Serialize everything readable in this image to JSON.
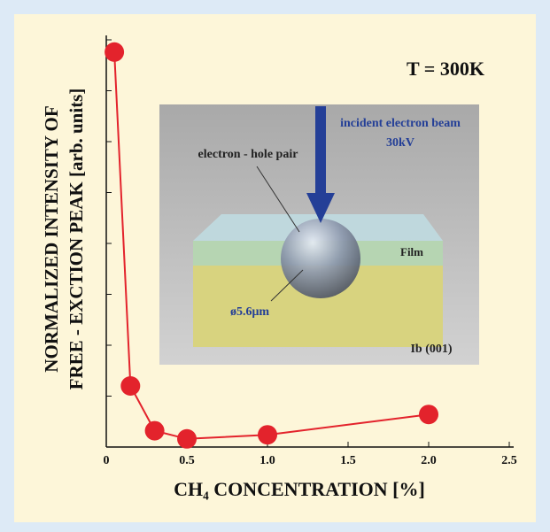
{
  "chart_data": {
    "type": "line",
    "xlabel": "CH₄ CONCENTRATION [%]",
    "ylabel": [
      "NORMALIZED INTENSITY OF",
      "FREE - EXCTION PEAK [arb. units]"
    ],
    "x": [
      0.05,
      0.15,
      0.3,
      0.5,
      1.0,
      2.0
    ],
    "series": [
      {
        "color": "#e3232c",
        "values": [
          0.97,
          0.15,
          0.04,
          0.02,
          0.03,
          0.08
        ]
      }
    ],
    "xlim": [
      0,
      2.5
    ],
    "xticks": [
      0,
      0.5,
      {
        "value": 1,
        "label": "1.0"
      },
      {
        "value": 1.5,
        "label": "1.5"
      },
      {
        "value": 2,
        "label": "2.0"
      },
      2.5
    ],
    "ylim": [
      0,
      1
    ],
    "annotations": {
      "temperature": "T = 300K",
      "beam": "incident electron beam",
      "voltage": "30kV",
      "pair": "electron - hole pair",
      "film": "Film",
      "diameter": "ø5.6μm",
      "substrate": "Ib (001)"
    }
  }
}
